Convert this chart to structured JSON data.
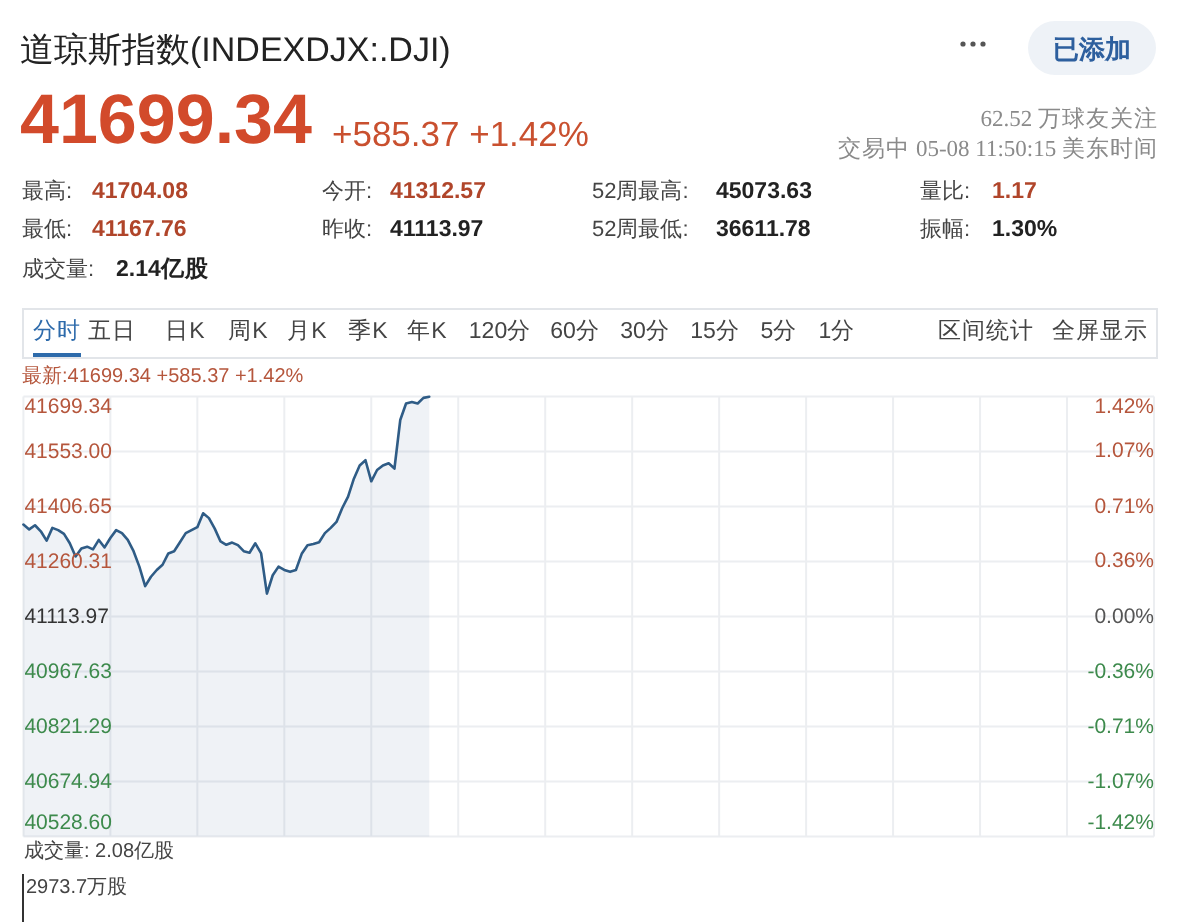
{
  "chart_data": {
    "type": "area",
    "title": "道琼斯指数(INDEXDJX:.DJI)",
    "annotations": [
      "41699.34",
      "+585.37 +1.42%",
      "62.52 万球友关注",
      "交易中 05-08 11:50:15 美东时间",
      "最高:",
      "41704.08",
      "今开:",
      "41312.57",
      "52周最高:",
      "45073.63",
      "量比:",
      "1.17",
      "最低:",
      "41167.76",
      "昨收:",
      "41113.97",
      "52周最低:",
      "36611.78",
      "振幅:",
      "1.30%",
      "成交量:",
      "2.14亿股",
      "分时",
      "五日",
      "日K",
      "周K",
      "月K",
      "季K",
      "年K",
      "120分",
      "60分",
      "30分",
      "15分",
      "5分",
      "1分",
      "区间统计",
      "全屏显示",
      "已添加",
      "最新:41699.34 +585.37 +1.42%",
      "成交量: 2.08亿股",
      "2973.7万股"
    ],
    "categories": [
      null,
      null,
      null,
      null,
      null,
      null,
      null,
      null,
      null,
      null,
      null,
      null,
      null,
      null,
      null,
      null,
      null,
      null,
      null,
      null,
      null,
      null,
      null,
      null,
      null,
      null,
      null,
      null,
      null,
      null,
      null,
      null,
      null,
      null,
      null,
      null,
      null,
      null,
      null,
      null,
      null,
      null,
      null,
      null,
      null,
      null,
      null,
      null,
      null,
      null,
      null,
      null,
      null,
      null,
      null,
      null,
      null,
      null,
      null,
      null,
      null,
      null,
      null,
      null,
      null,
      null,
      null,
      null,
      null,
      null,
      null,
      null,
      null,
      null,
      null,
      null,
      null,
      null,
      null,
      null,
      null,
      null,
      null,
      null,
      null,
      null,
      null,
      null,
      null,
      null,
      null,
      null,
      null,
      null,
      null,
      null,
      null,
      null,
      null,
      null,
      null,
      null,
      null,
      null,
      null,
      null,
      null,
      null,
      null,
      null,
      null,
      null,
      null,
      null,
      null,
      null,
      null,
      null,
      null,
      null,
      null,
      null,
      null,
      null,
      null,
      null,
      null,
      null,
      null,
      null,
      null,
      null,
      null,
      null,
      null,
      null,
      null,
      null,
      null,
      null,
      null,
      null,
      null,
      null,
      null,
      null,
      null,
      null,
      null,
      null,
      null,
      null,
      null,
      null,
      null,
      null,
      null,
      null,
      null,
      null,
      null,
      null,
      null,
      null,
      null,
      null,
      null,
      null,
      null,
      null,
      null,
      null,
      null,
      null,
      null,
      null,
      null,
      null,
      null,
      null,
      null,
      null,
      null,
      null,
      null,
      null,
      null,
      null,
      null,
      null,
      null,
      null,
      null,
      null,
      null,
      null
    ],
    "series": [
      {
        "color": "#2f5c86",
        "values": [
          41359,
          41346,
          41357,
          41341,
          41316,
          41350,
          41344,
          41334,
          41309,
          41274,
          41295,
          41300,
          41293,
          41318,
          41298,
          41323,
          41344,
          41336,
          41318,
          41288,
          41247,
          41195,
          41220,
          41238,
          41252,
          41282,
          41288,
          41312,
          41336,
          41344,
          41352,
          41389,
          41376,
          41348,
          41314,
          41305,
          41311,
          41304,
          41288,
          41284,
          41309,
          41282,
          41175,
          41224,
          41247,
          41238,
          41233,
          41238,
          41281,
          41304,
          41307,
          41312,
          41336,
          41350,
          41366,
          41403,
          41433,
          41481,
          41516,
          41530,
          41474,
          41504,
          41516,
          41522,
          41508,
          41637,
          41681,
          41685,
          41681,
          41696,
          41699,
          null,
          null,
          null,
          null,
          null,
          null,
          null,
          null,
          null,
          null,
          null,
          null,
          null,
          null,
          null,
          null,
          null,
          null,
          null,
          null,
          null,
          null,
          null,
          null,
          null,
          null,
          null,
          null,
          null,
          null,
          null,
          null,
          null,
          null,
          null,
          null,
          null,
          null,
          null,
          null,
          null,
          null,
          null,
          null,
          null,
          null,
          null,
          null,
          null,
          null,
          null,
          null,
          null,
          null,
          null,
          null,
          null,
          null,
          null,
          null,
          null,
          null,
          null,
          null,
          null,
          null,
          null,
          null,
          null,
          null,
          null,
          null,
          null,
          null,
          null,
          null,
          null,
          null,
          null,
          null,
          null,
          null,
          null,
          null,
          null,
          null,
          null,
          null,
          null,
          null,
          null,
          null,
          null,
          null,
          null,
          null,
          null,
          null,
          null,
          null,
          null,
          null,
          null,
          null,
          null,
          null,
          null,
          null,
          null,
          null,
          null,
          null,
          null,
          null,
          null,
          null,
          null,
          null,
          null,
          null,
          null,
          null,
          null,
          null,
          null
        ]
      }
    ],
    "ylim": [
      40528.6,
      41699.34
    ],
    "yticks": [
      41699.34,
      {
        "value": 41553,
        "label": "41553.00"
      },
      41406.65,
      41260.31,
      41113.97,
      40967.63,
      40821.29,
      40674.94,
      {
        "value": 40528.6,
        "label": "40528.60"
      }
    ],
    "y2lim": [
      -1.42,
      1.42
    ],
    "y2ticks": [
      {
        "value": 1.42,
        "label": "1.42%"
      },
      {
        "value": 1.07,
        "label": "1.07%"
      },
      {
        "value": 0.71,
        "label": "0.71%"
      },
      {
        "value": 0.36,
        "label": "0.36%"
      },
      {
        "value": 0,
        "label": "0.00%"
      },
      {
        "value": -0.36,
        "label": "-0.36%"
      },
      {
        "value": -0.71,
        "label": "-0.71%"
      },
      {
        "value": -1.07,
        "label": "-1.07%"
      },
      {
        "value": -1.42,
        "label": "-1.42%"
      }
    ],
    "grid": true
  }
}
